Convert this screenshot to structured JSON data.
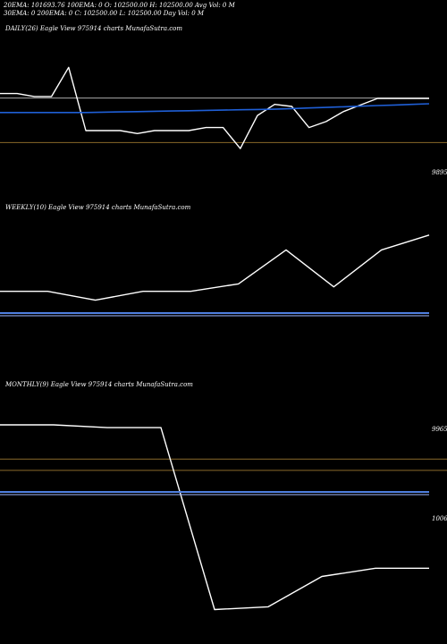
{
  "header": {
    "line1": "20EMA: 101693.76 100EMA: 0          O: 102500.00 H: 102500.00 Avg Vol: 0  M",
    "line2": "30EMA: 0           200EMA: 0          C: 102500.00 L: 102500.00 Day Vol: 0  M"
  },
  "colors": {
    "background": "#000000",
    "price": "#ffffff",
    "ema": "#1f5fd6",
    "level": "#8a6a2a",
    "flat_line": "#aaaaaa",
    "band": "#4f7fe0"
  },
  "chart_data": [
    {
      "panel": "daily",
      "type": "line",
      "title": "DAILY(26) Eagle  View  975914  charts MunafaSutra.com",
      "x": [
        0,
        1,
        2,
        3,
        4,
        5,
        6,
        7,
        8,
        9,
        10,
        11,
        12,
        13,
        14,
        15,
        16,
        17,
        18,
        19,
        20,
        21,
        22,
        23,
        24,
        25
      ],
      "series": [
        {
          "role": "price",
          "values": [
            100580,
            100580,
            100480,
            100480,
            101450,
            99350,
            99350,
            99350,
            99250,
            99350,
            99350,
            99350,
            99450,
            99450,
            98750,
            99850,
            100220,
            100150,
            99450,
            99650,
            99980,
            100200,
            100420,
            100420,
            100420,
            100420
          ]
        },
        {
          "role": "ema",
          "values": [
            99950,
            99950,
            99950,
            99950,
            99950,
            99950,
            99960,
            99970,
            99980,
            99990,
            100000,
            100010,
            100020,
            100030,
            100040,
            100050,
            100060,
            100080,
            100100,
            100120,
            100140,
            100160,
            100180,
            100200,
            100220,
            100240
          ]
        }
      ],
      "level": 98950,
      "level_label": "9895",
      "flat_value": 100430,
      "ylim": [
        97000,
        102500
      ]
    },
    {
      "panel": "weekly",
      "type": "line",
      "title": "WEEKLY(10) Eagle  View  975914  charts MunafaSutra.com",
      "x": [
        0,
        1,
        2,
        3,
        4,
        5,
        6,
        7,
        8,
        9
      ],
      "series": [
        {
          "role": "price",
          "values": [
            99700,
            99700,
            99100,
            99700,
            99700,
            100200,
            102500,
            100000,
            102500,
            103500
          ]
        }
      ],
      "ylim": [
        94000,
        105000
      ]
    },
    {
      "panel": "monthly",
      "type": "line",
      "title": "MONTHLY(9) Eagle  View  975914  charts MunafaSutra.com",
      "x": [
        0,
        1,
        2,
        3,
        4,
        5,
        6,
        7,
        8
      ],
      "series": [
        {
          "role": "price",
          "values": [
            101300,
            101300,
            101200,
            101200,
            94600,
            94700,
            95800,
            96100,
            96100
          ]
        }
      ],
      "levels": [
        99650,
        100060
      ],
      "level_labels": [
        "9965",
        "1006"
      ],
      "ylim": [
        94000,
        102500
      ]
    }
  ]
}
